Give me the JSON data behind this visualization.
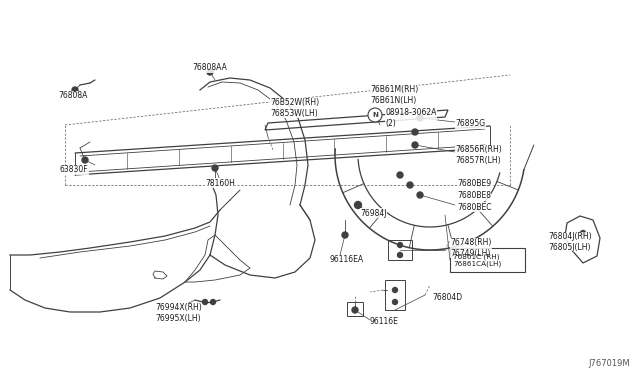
{
  "bg_color": "#ffffff",
  "line_color": "#404040",
  "text_color": "#1a1a1a",
  "fig_width": 6.4,
  "fig_height": 3.72,
  "dpi": 100,
  "watermark": "J767019M",
  "labels": {
    "76994X": "76994X(RH)\n76995X(LH)",
    "96116E": "96116E",
    "76804D": "76804D",
    "76748": "76748(RH)\n76749(LH)",
    "96116EA": "96116EA",
    "76984J": "76984J",
    "76861C": "76861C (RH)\n76861CA(LH)",
    "76804J": "76804J(RH)\n76805J(LH)",
    "7680BEC": "7680BEC",
    "7680BE8": "7680BE8",
    "7680BE9": "7680BE9",
    "76856R": "76856R(RH)\n76857R(LH)",
    "76895G": "76895G",
    "08918": "08918-3062A\n(2)",
    "78160H": "78160H",
    "63830F": "63830F",
    "76852W": "76B52W(RH)\n76853W(LH)",
    "76861M": "76B61M(RH)\n76B61N(LH)",
    "76808A": "76808A",
    "76808AA": "76808AA"
  }
}
